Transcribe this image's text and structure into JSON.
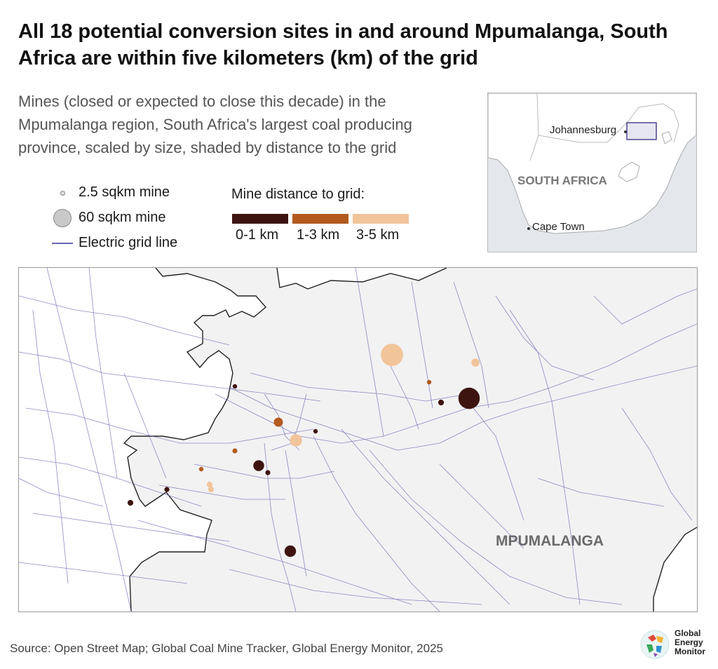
{
  "title": "All 18 potential conversion sites in and around Mpumalanga, South Africa are within five kilometers (km) of the grid",
  "subtitle": "Mines (closed or expected to close this decade) in the Mpumalanga region, South Africa's largest coal producing province, scaled by size, shaded by distance to the grid",
  "legend": {
    "size_small": "2.5 sqkm mine",
    "size_large": "60 sqkm mine",
    "grid_line": "Electric grid line",
    "distance_title": "Mine distance to grid:",
    "distance_bins": [
      {
        "label": "0-1 km",
        "color": "#3d1410"
      },
      {
        "label": "1-3 km",
        "color": "#b35a1e"
      },
      {
        "label": "3-5 km",
        "color": "#f2c49a"
      }
    ]
  },
  "inset": {
    "country_label": "SOUTH AFRICA",
    "city_johannesburg": "Johannesburg",
    "city_cape_town": "Cape Town"
  },
  "map": {
    "region_label": "MPUMALANGA",
    "land_color": "#f2f2f3",
    "grid_color": "#6a66b0",
    "mines": [
      {
        "dist_bin": 2,
        "area_sqkm": 60
      },
      {
        "dist_bin": 2,
        "area_sqkm": 8
      },
      {
        "dist_bin": 0,
        "area_sqkm": 55
      },
      {
        "dist_bin": 0,
        "area_sqkm": 4
      },
      {
        "dist_bin": 1,
        "area_sqkm": 2.5
      },
      {
        "dist_bin": 0,
        "area_sqkm": 2.5
      },
      {
        "dist_bin": 1,
        "area_sqkm": 10
      },
      {
        "dist_bin": 2,
        "area_sqkm": 18
      },
      {
        "dist_bin": 0,
        "area_sqkm": 2.5
      },
      {
        "dist_bin": 1,
        "area_sqkm": 3
      },
      {
        "dist_bin": 0,
        "area_sqkm": 14
      },
      {
        "dist_bin": 0,
        "area_sqkm": 3
      },
      {
        "dist_bin": 1,
        "area_sqkm": 2.5
      },
      {
        "dist_bin": 2,
        "area_sqkm": 4
      },
      {
        "dist_bin": 2,
        "area_sqkm": 4
      },
      {
        "dist_bin": 0,
        "area_sqkm": 3
      },
      {
        "dist_bin": 0,
        "area_sqkm": 4
      },
      {
        "dist_bin": 0,
        "area_sqkm": 16
      }
    ]
  },
  "source": "Source: Open Street Map; Global Coal Mine Tracker, Global Energy Monitor, 2025",
  "logo_text": [
    "Global",
    "Energy",
    "Monitor"
  ]
}
